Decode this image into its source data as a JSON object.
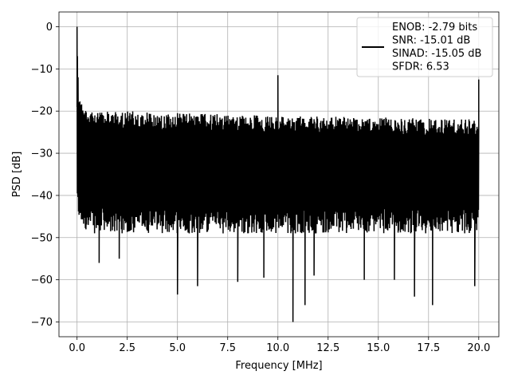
{
  "chart_data": {
    "type": "line",
    "title": "",
    "xlabel": "Frequency [MHz]",
    "ylabel": "PSD [dB]",
    "xlim": [
      -0.9,
      21.0
    ],
    "ylim": [
      -73.5,
      3.5
    ],
    "x_ticks": [
      0.0,
      2.5,
      5.0,
      7.5,
      10.0,
      12.5,
      15.0,
      17.5,
      20.0
    ],
    "x_tick_labels": [
      "0.0",
      "2.5",
      "5.0",
      "7.5",
      "10.0",
      "12.5",
      "15.0",
      "17.5",
      "20.0"
    ],
    "y_ticks": [
      0,
      -10,
      -20,
      -30,
      -40,
      -50,
      -60,
      -70
    ],
    "y_tick_labels": [
      "0",
      "−10",
      "−20",
      "−30",
      "−40",
      "−50",
      "−60",
      "−70"
    ],
    "grid": true,
    "legend_position": "upper-right",
    "legend_entries": [
      "ENOB: -2.79 bits",
      "SNR: -15.01 dB",
      "SINAD: -15.05 dB",
      "SFDR: 6.53"
    ],
    "series": [
      {
        "color": "#000000",
        "frequency_range_mhz": [
          0.0,
          20.0
        ],
        "noise_upper_envelope_db": -20,
        "noise_lower_envelope_db": -46,
        "peaks": [
          {
            "x": 0.0,
            "y": 0.0
          },
          {
            "x": 0.02,
            "y": -7.0
          },
          {
            "x": 0.05,
            "y": -12.0
          },
          {
            "x": 10.0,
            "y": -11.5
          },
          {
            "x": 20.0,
            "y": -12.5
          }
        ],
        "dips": [
          {
            "x": 1.1,
            "y": -56
          },
          {
            "x": 2.1,
            "y": -55
          },
          {
            "x": 5.0,
            "y": -63.5
          },
          {
            "x": 6.0,
            "y": -61.5
          },
          {
            "x": 8.0,
            "y": -60.5
          },
          {
            "x": 9.3,
            "y": -59.5
          },
          {
            "x": 10.75,
            "y": -70.0
          },
          {
            "x": 11.35,
            "y": -66.0
          },
          {
            "x": 11.8,
            "y": -59.0
          },
          {
            "x": 14.3,
            "y": -60.0
          },
          {
            "x": 15.8,
            "y": -60.0
          },
          {
            "x": 16.8,
            "y": -64.0
          },
          {
            "x": 17.7,
            "y": -66.0
          },
          {
            "x": 19.8,
            "y": -61.5
          }
        ]
      }
    ]
  }
}
